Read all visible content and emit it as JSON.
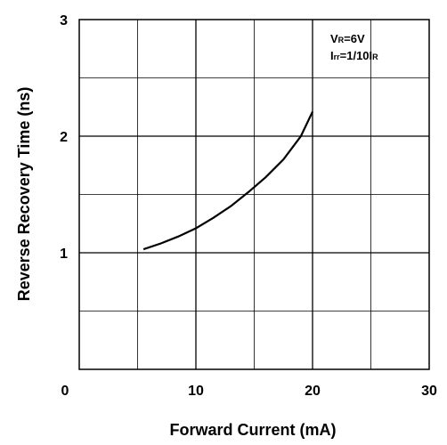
{
  "chart_data": {
    "type": "line",
    "xlabel": "Forward Current (mA)",
    "ylabel": "Reverse Recovery Time (ns)",
    "xlim": [
      0,
      30
    ],
    "ylim": [
      0,
      3
    ],
    "x_ticks": [
      "0",
      "10",
      "20",
      "30"
    ],
    "y_ticks": [
      "0",
      "1",
      "2",
      "3"
    ],
    "grid": true,
    "series": [
      {
        "x": [
          5.5,
          7,
          8.5,
          10,
          11.5,
          13,
          14.5,
          16,
          17.5,
          19,
          20
        ],
        "y": [
          1.03,
          1.08,
          1.14,
          1.21,
          1.3,
          1.4,
          1.52,
          1.65,
          1.8,
          2.0,
          2.21
        ]
      }
    ],
    "annotations": {
      "vr": {
        "main": "V",
        "sub": "R",
        "value": "=6V"
      },
      "irr": {
        "main": "I",
        "sub": "rr",
        "mid": "=1/10I",
        "sub2": "R"
      }
    }
  }
}
